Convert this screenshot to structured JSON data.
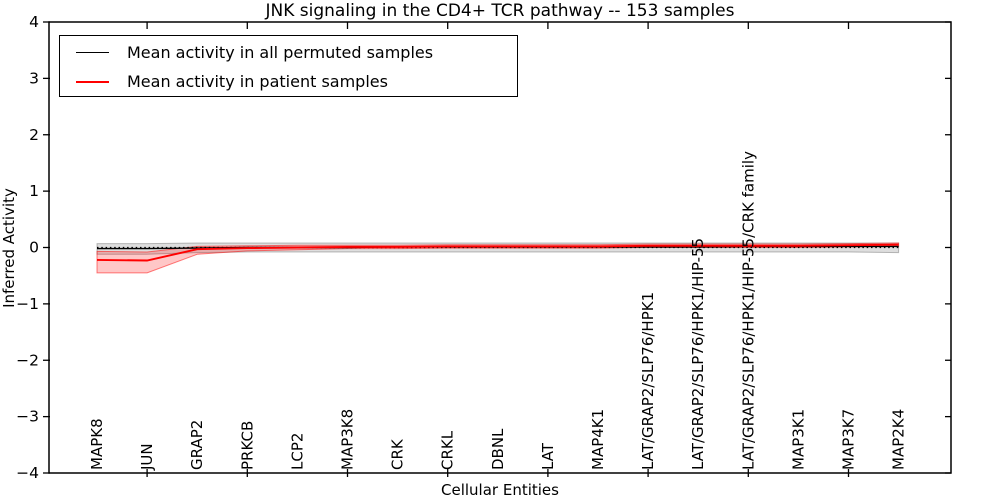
{
  "chart_data": {
    "type": "line",
    "title": "JNK signaling in the CD4+ TCR pathway -- 153 samples",
    "xlabel": "Cellular Entities",
    "ylabel": "Inferred Activity",
    "ylim": [
      -4,
      4
    ],
    "y_tick_labels": [
      "4",
      "3",
      "2",
      "1",
      "0",
      "−1",
      "−2",
      "−3",
      "−4"
    ],
    "y_tick_values": [
      4,
      3,
      2,
      1,
      0,
      -1,
      -2,
      -3,
      -4
    ],
    "zero_line": 0,
    "grid": false,
    "legend_position": "upper left",
    "categories": [
      "MAPK8",
      "JUN",
      "GRAP2",
      "PRKCB",
      "LCP2",
      "MAP3K8",
      "CRK",
      "CRKL",
      "DBNL",
      "LAT",
      "MAP4K1",
      "LAT/GRAP2/SLP76/HPK1",
      "LAT/GRAP2/SLP76/HPK1/HIP-55",
      "LAT/GRAP2/SLP76/HPK1/HIP-55/CRK family",
      "MAP3K1",
      "MAP3K7",
      "MAP2K4"
    ],
    "series": [
      {
        "name": "Mean activity in all permuted samples",
        "color": "#000000",
        "band_fill": "rgba(0,0,0,0.13)",
        "band_edge": "rgba(0,0,0,0.25)",
        "values": [
          -0.02,
          -0.02,
          -0.01,
          0.0,
          0.0,
          0.0,
          0.01,
          0.01,
          0.01,
          0.01,
          0.01,
          0.01,
          0.01,
          0.02,
          0.02,
          0.02,
          0.02
        ],
        "band_hi": [
          0.07,
          0.07,
          0.08,
          0.08,
          0.08,
          0.08,
          0.08,
          0.08,
          0.08,
          0.08,
          0.08,
          0.08,
          0.08,
          0.08,
          0.08,
          0.08,
          0.08
        ],
        "band_lo": [
          -0.12,
          -0.12,
          -0.09,
          -0.08,
          -0.08,
          -0.08,
          -0.08,
          -0.08,
          -0.08,
          -0.08,
          -0.08,
          -0.08,
          -0.08,
          -0.08,
          -0.08,
          -0.08,
          -0.09
        ]
      },
      {
        "name": "Mean activity in patient samples",
        "color": "#ff0000",
        "band_fill": "rgba(255,0,0,0.22)",
        "band_edge": "rgba(255,0,0,0.5)",
        "values": [
          -0.22,
          -0.23,
          -0.03,
          -0.01,
          0.0,
          0.01,
          0.01,
          0.02,
          0.02,
          0.02,
          0.02,
          0.03,
          0.03,
          0.03,
          0.03,
          0.04,
          0.05
        ],
        "band_hi": [
          -0.07,
          -0.08,
          0.02,
          0.03,
          0.04,
          0.04,
          0.04,
          0.05,
          0.05,
          0.05,
          0.05,
          0.06,
          0.06,
          0.06,
          0.06,
          0.07,
          0.08
        ],
        "band_lo": [
          -0.45,
          -0.45,
          -0.12,
          -0.06,
          -0.04,
          -0.02,
          -0.02,
          -0.01,
          -0.01,
          -0.01,
          -0.01,
          0.0,
          0.0,
          0.0,
          0.0,
          0.01,
          0.02
        ]
      }
    ]
  }
}
